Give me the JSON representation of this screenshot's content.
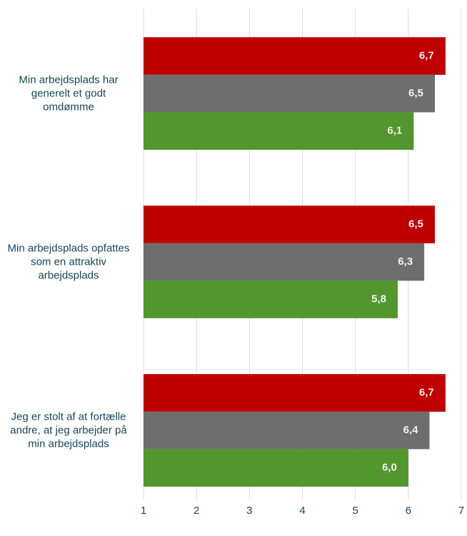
{
  "chart_data": {
    "type": "barh",
    "categories": [
      "Min arbejdsplads har generelt et godt omdømme",
      "Min arbejdsplads opfattes som en attraktiv arbejdsplads",
      "Jeg er stolt af at fortælle andre, at jeg arbejder på min arbejdsplads"
    ],
    "series": [
      {
        "color": "#c00000",
        "values": [
          6.7,
          6.5,
          6.7
        ],
        "value_labels": [
          "6,7",
          "6,5",
          "6,7"
        ]
      },
      {
        "color": "#6e6e6e",
        "values": [
          6.5,
          6.3,
          6.4
        ],
        "value_labels": [
          "6,5",
          "6,3",
          "6,4"
        ]
      },
      {
        "color": "#52962e",
        "values": [
          6.1,
          5.8,
          6.0
        ],
        "value_labels": [
          "6,1",
          "5,8",
          "6,0"
        ]
      }
    ],
    "xlim": [
      1,
      7
    ],
    "xticks": [
      1,
      2,
      3,
      4,
      5,
      6,
      7
    ],
    "grid": true
  }
}
